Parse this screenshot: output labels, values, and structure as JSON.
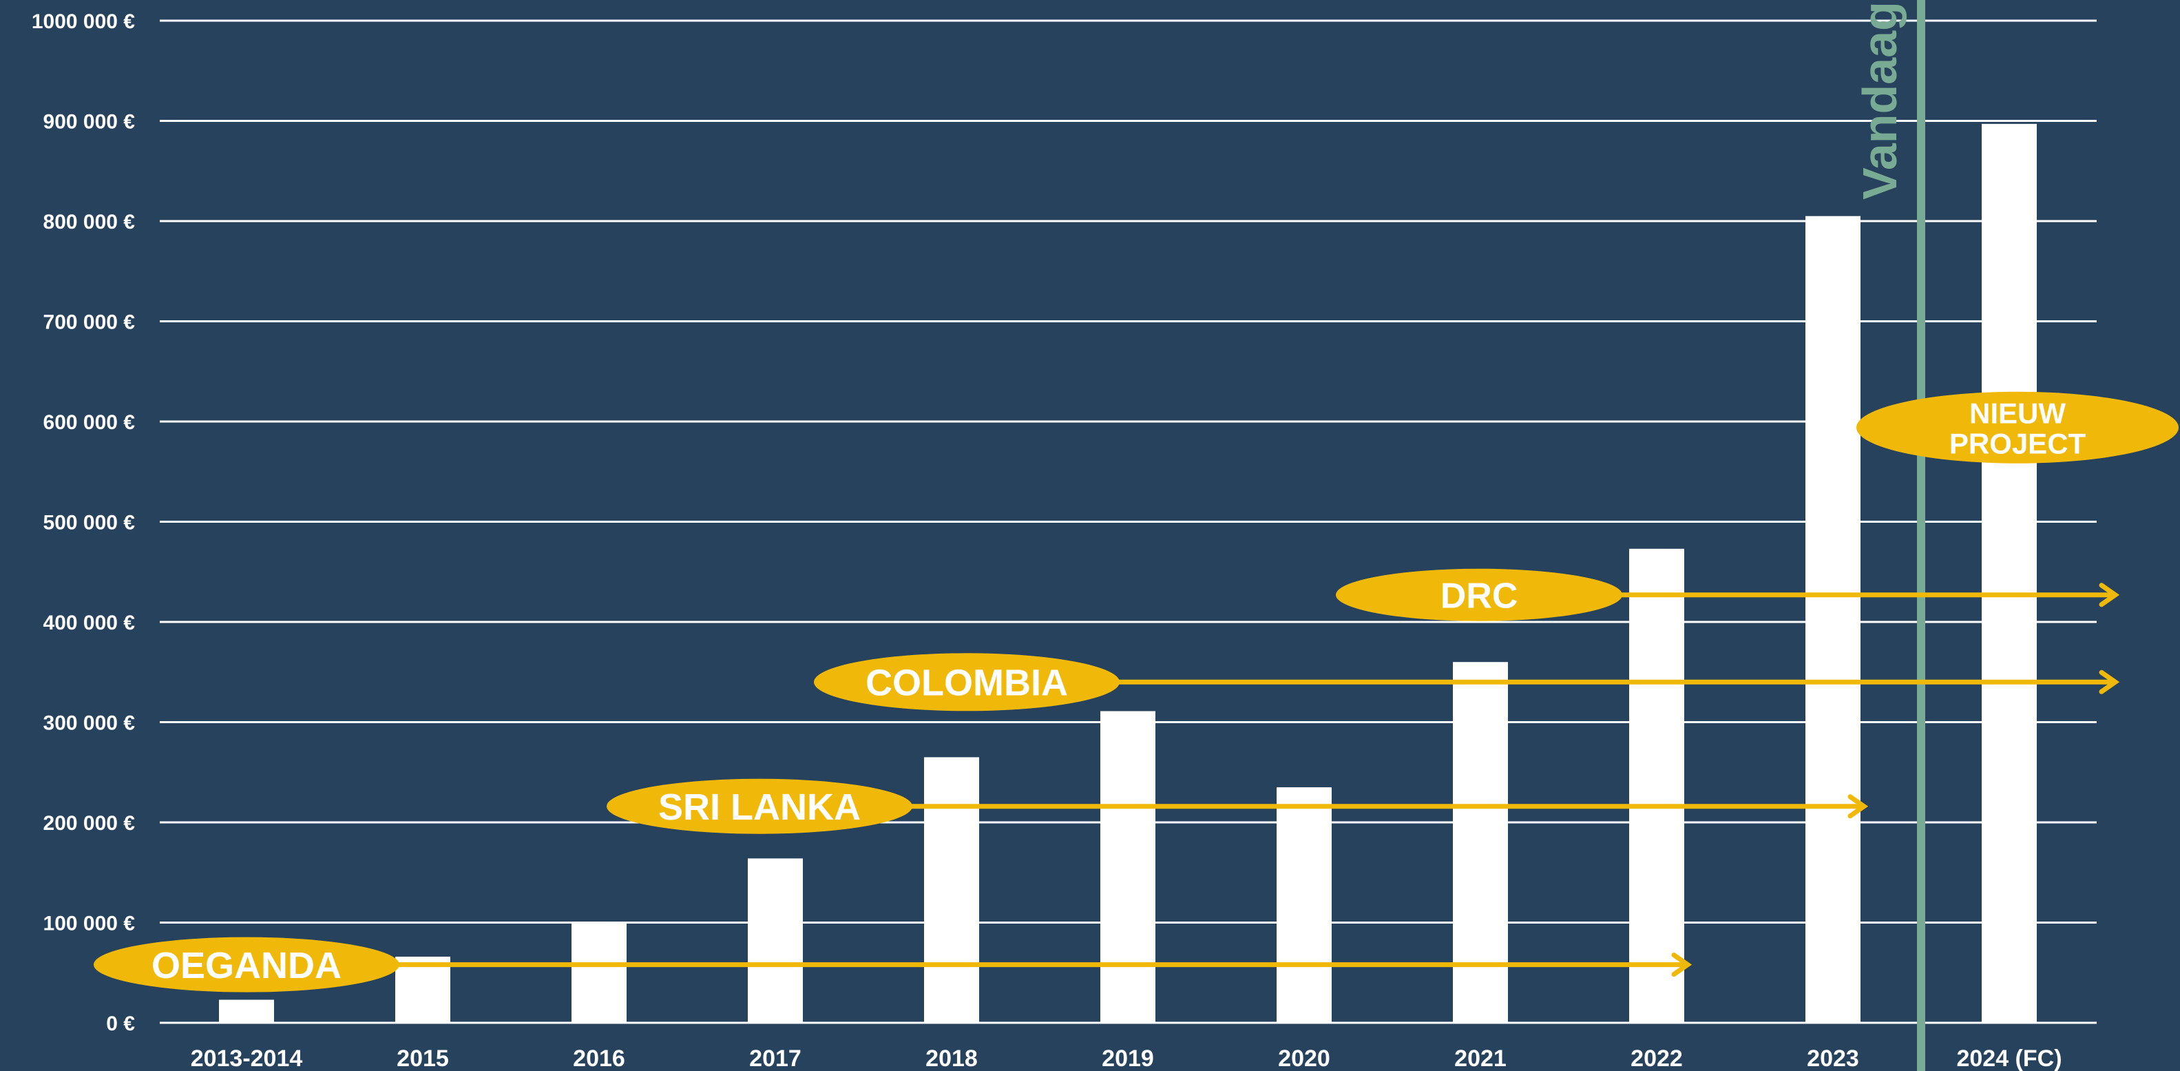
{
  "chart_data": {
    "type": "bar",
    "categories": [
      "2013-2014",
      "2015",
      "2016",
      "2017",
      "2018",
      "2019",
      "2020",
      "2021",
      "2022",
      "2023",
      "2024 (FC)"
    ],
    "values": [
      23000,
      66000,
      100000,
      164000,
      265000,
      311000,
      235000,
      360000,
      473000,
      805000,
      897000
    ],
    "ylim": [
      0,
      1000000
    ],
    "yticks": [
      0,
      100000,
      200000,
      300000,
      400000,
      500000,
      600000,
      700000,
      800000,
      900000,
      1000000
    ],
    "ytick_labels": [
      "0 €",
      "100 000 €",
      "200 000 €",
      "300 000 €",
      "400 000 €",
      "500 000 €",
      "600 000 €",
      "700 000 €",
      "800 000 €",
      "900 000 €",
      "1000 000 €"
    ],
    "grid": true,
    "bar_color": "#ffffff",
    "today_marker": {
      "label": "Vandaag",
      "between": [
        "2023",
        "2024 (FC)"
      ],
      "color": "#79ab94"
    },
    "projects": [
      {
        "name": "OEGANDA",
        "start": "2013-2014",
        "end": "2022",
        "level": 58000,
        "ongoing": false
      },
      {
        "name": "SRI LANKA",
        "start": "2017",
        "end": "2023",
        "level": 216000,
        "ongoing": false
      },
      {
        "name": "COLOMBIA",
        "start": "2018",
        "end": "2024 (FC)",
        "level": 340000,
        "ongoing": true
      },
      {
        "name": "DRC",
        "start": "2021",
        "end": "2024 (FC)",
        "level": 427000,
        "ongoing": true
      }
    ],
    "new_project": {
      "name_lines": [
        "NIEUW",
        "PROJECT"
      ],
      "category": "2024 (FC)",
      "level": 594000
    },
    "accent_color": "#f0b90a",
    "background_color": "#27425c"
  }
}
